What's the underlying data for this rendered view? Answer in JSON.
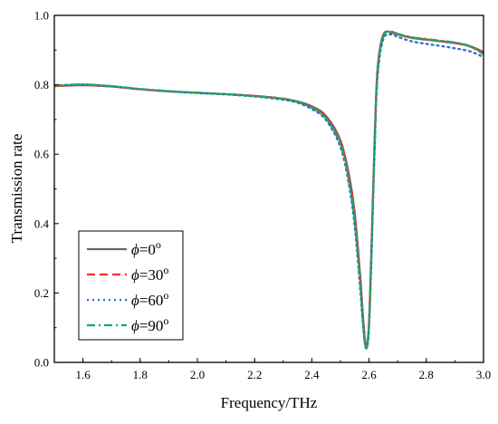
{
  "chart_data": {
    "type": "line",
    "xlabel": "Frequency/THz",
    "ylabel": "Transmission rate",
    "xlim": [
      1.5,
      3.0
    ],
    "ylim": [
      0.0,
      1.0
    ],
    "xticks": [
      "1.6",
      "1.8",
      "2.0",
      "2.2",
      "2.4",
      "2.6",
      "2.8",
      "3.0"
    ],
    "yticks": [
      "0.0",
      "0.2",
      "0.4",
      "0.6",
      "0.8",
      "1.0"
    ],
    "grid": false,
    "legend_position": "bottom-left",
    "series": [
      {
        "symbol": "ϕ",
        "equals": "=0",
        "superscript": "o",
        "color": "#666666",
        "dash": "solid",
        "x": [
          1.5,
          1.6,
          1.7,
          1.8,
          1.9,
          2.0,
          2.1,
          2.2,
          2.3,
          2.35,
          2.4,
          2.45,
          2.5,
          2.53,
          2.55,
          2.57,
          2.58,
          2.59,
          2.6,
          2.61,
          2.62,
          2.63,
          2.65,
          2.68,
          2.7,
          2.75,
          2.8,
          2.85,
          2.9,
          2.95,
          3.0
        ],
        "y": [
          0.796,
          0.799,
          0.795,
          0.787,
          0.781,
          0.777,
          0.773,
          0.768,
          0.76,
          0.752,
          0.738,
          0.71,
          0.64,
          0.54,
          0.43,
          0.24,
          0.12,
          0.045,
          0.12,
          0.38,
          0.66,
          0.85,
          0.945,
          0.95,
          0.945,
          0.935,
          0.93,
          0.925,
          0.92,
          0.912,
          0.895
        ]
      },
      {
        "symbol": "ϕ",
        "equals": "=30",
        "superscript": "o",
        "color": "#ff2a2a",
        "dash": "dashed",
        "x": [
          1.5,
          1.6,
          1.7,
          1.8,
          1.9,
          2.0,
          2.1,
          2.2,
          2.3,
          2.35,
          2.4,
          2.45,
          2.5,
          2.53,
          2.55,
          2.57,
          2.58,
          2.59,
          2.6,
          2.61,
          2.62,
          2.63,
          2.65,
          2.68,
          2.7,
          2.75,
          2.8,
          2.85,
          2.9,
          2.95,
          3.0
        ],
        "y": [
          0.796,
          0.799,
          0.795,
          0.787,
          0.781,
          0.777,
          0.773,
          0.768,
          0.76,
          0.751,
          0.736,
          0.707,
          0.635,
          0.53,
          0.42,
          0.23,
          0.11,
          0.042,
          0.115,
          0.37,
          0.65,
          0.845,
          0.943,
          0.952,
          0.946,
          0.936,
          0.931,
          0.926,
          0.921,
          0.911,
          0.893
        ]
      },
      {
        "symbol": "ϕ",
        "equals": "=60",
        "superscript": "o",
        "color": "#1f6fd1",
        "dash": "dotted",
        "x": [
          1.5,
          1.6,
          1.7,
          1.8,
          1.9,
          2.0,
          2.1,
          2.2,
          2.3,
          2.35,
          2.4,
          2.45,
          2.5,
          2.53,
          2.55,
          2.57,
          2.58,
          2.59,
          2.6,
          2.61,
          2.62,
          2.63,
          2.65,
          2.68,
          2.7,
          2.75,
          2.8,
          2.85,
          2.9,
          2.95,
          3.0
        ],
        "y": [
          0.798,
          0.801,
          0.796,
          0.788,
          0.781,
          0.776,
          0.772,
          0.766,
          0.757,
          0.748,
          0.73,
          0.698,
          0.62,
          0.51,
          0.39,
          0.2,
          0.095,
          0.04,
          0.1,
          0.34,
          0.62,
          0.825,
          0.932,
          0.945,
          0.938,
          0.925,
          0.918,
          0.912,
          0.905,
          0.897,
          0.88
        ]
      },
      {
        "symbol": "ϕ",
        "equals": "=90",
        "superscript": "o",
        "color": "#1aa866",
        "dash": "dashdot",
        "x": [
          1.5,
          1.6,
          1.7,
          1.8,
          1.9,
          2.0,
          2.1,
          2.2,
          2.3,
          2.35,
          2.4,
          2.45,
          2.5,
          2.53,
          2.55,
          2.57,
          2.58,
          2.59,
          2.6,
          2.61,
          2.62,
          2.63,
          2.65,
          2.68,
          2.7,
          2.75,
          2.8,
          2.85,
          2.9,
          2.95,
          3.0
        ],
        "y": [
          0.798,
          0.801,
          0.796,
          0.788,
          0.782,
          0.777,
          0.773,
          0.767,
          0.759,
          0.75,
          0.734,
          0.703,
          0.628,
          0.52,
          0.405,
          0.215,
          0.1,
          0.038,
          0.108,
          0.355,
          0.635,
          0.835,
          0.94,
          0.953,
          0.947,
          0.937,
          0.932,
          0.927,
          0.922,
          0.912,
          0.888
        ]
      }
    ]
  }
}
